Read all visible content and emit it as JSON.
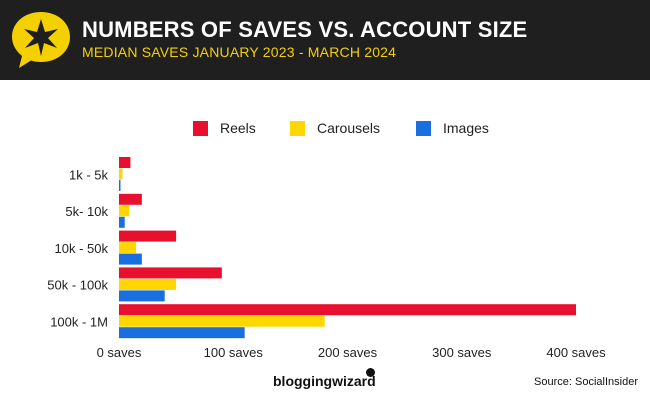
{
  "header": {
    "title": "NUMBERS OF SAVES VS. ACCOUNT SIZE",
    "subtitle": "MEDIAN SAVES JANUARY 2023 - MARCH 2024",
    "logo_icon": "star-speech-bubble-icon"
  },
  "footer": {
    "brand": "bloggingwizard",
    "source": "Source: SocialInsider"
  },
  "colors": {
    "header_bg": "#1f1f1f",
    "accent_yellow": "#f5d000",
    "reels": "#e8102f",
    "carousels": "#ffd600",
    "images": "#1a6fe0"
  },
  "chart_data": {
    "type": "bar",
    "orientation": "horizontal",
    "categories": [
      "1k - 5k",
      "5k- 10k",
      "10k - 50k",
      "50k - 100k",
      "100k - 1M"
    ],
    "series": [
      {
        "name": "Reels",
        "color": "#e8102f",
        "values": [
          10,
          20,
          50,
          90,
          400
        ]
      },
      {
        "name": "Carousels",
        "color": "#ffd600",
        "values": [
          3,
          9,
          15,
          50,
          180
        ]
      },
      {
        "name": "Images",
        "color": "#1a6fe0",
        "values": [
          1,
          5,
          20,
          40,
          110
        ]
      }
    ],
    "x_ticks": [
      {
        "value": 0,
        "label": "0 saves"
      },
      {
        "value": 100,
        "label": "100 saves"
      },
      {
        "value": 200,
        "label": "200 saves"
      },
      {
        "value": 300,
        "label": "300 saves"
      },
      {
        "value": 400,
        "label": "400 saves"
      }
    ],
    "xlim": [
      0,
      400
    ],
    "grid": false,
    "legend_position": "top-center"
  }
}
